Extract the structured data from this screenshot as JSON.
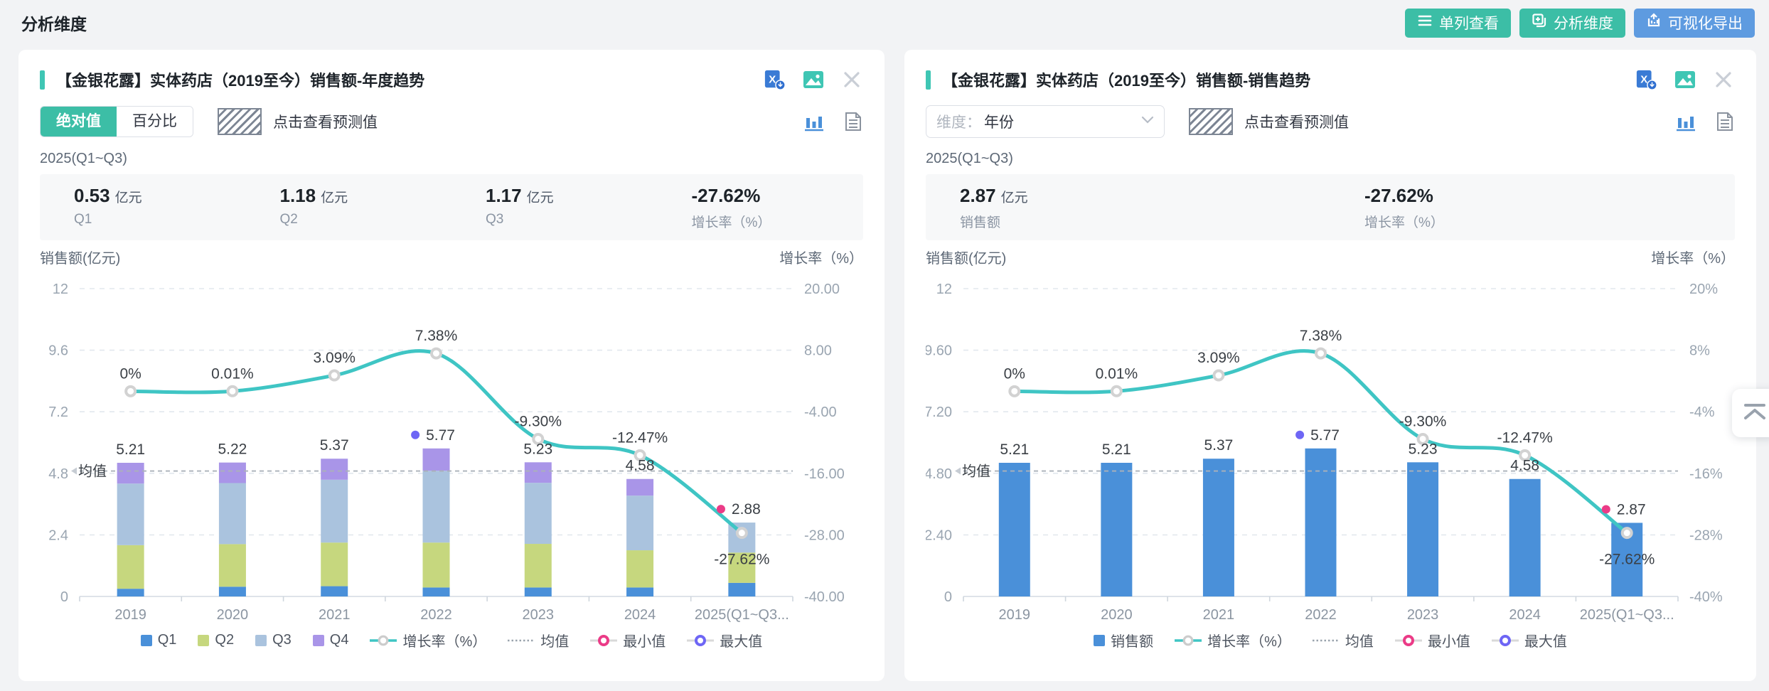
{
  "page": {
    "title": "分析维度"
  },
  "toolbar": {
    "single_column": "单列查看",
    "analysis_dimension": "分析维度",
    "visual_export": "可视化导出"
  },
  "colors": {
    "teal_button": "#3cbea6",
    "blue_button": "#5e9be0",
    "accent_bar": "#3fc6b4",
    "bar_blue": "#4a90d9",
    "q2_green": "#c6d77e",
    "q3_steel": "#aac3de",
    "q4_purple": "#a995e8",
    "line_teal": "#3fc5c4",
    "min_pink": "#eb3b87",
    "max_purple": "#6e66f5"
  },
  "panels": [
    {
      "title": "【金银花露】实体药店（2019至今）销售额-年度趋势",
      "toggle_active": "绝对值",
      "toggle_inactive": "百分比",
      "forecast_hint": "点击查看预测值",
      "period": "2025(Q1~Q3)",
      "stats": [
        {
          "value": "0.53",
          "unit": "亿元",
          "label": "Q1"
        },
        {
          "value": "1.18",
          "unit": "亿元",
          "label": "Q2"
        },
        {
          "value": "1.17",
          "unit": "亿元",
          "label": "Q3"
        },
        {
          "value": "-27.62%",
          "unit": "",
          "label": "增长率（%）"
        }
      ]
    },
    {
      "title": "【金银花露】实体药店（2019至今）销售额-销售趋势",
      "dimension_label": "维度：",
      "dimension_value": "年份",
      "forecast_hint": "点击查看预测值",
      "period": "2025(Q1~Q3)",
      "stats": [
        {
          "value": "2.87",
          "unit": "亿元",
          "label": "销售额"
        },
        {
          "value": "-27.62%",
          "unit": "",
          "label": "增长率（%）"
        }
      ]
    }
  ],
  "chart_data": [
    {
      "type": "bar",
      "subtype": "stacked-bar-with-line",
      "categories": [
        "2019",
        "2020",
        "2021",
        "2022",
        "2023",
        "2024",
        "2025(Q1~Q3..."
      ],
      "series": [
        {
          "name": "Q1",
          "color": "#4a90d9",
          "values": [
            0.3,
            0.38,
            0.4,
            0.35,
            0.35,
            0.35,
            0.53
          ]
        },
        {
          "name": "Q2",
          "color": "#c6d77e",
          "values": [
            1.7,
            1.66,
            1.7,
            1.75,
            1.7,
            1.45,
            1.18
          ]
        },
        {
          "name": "Q3",
          "color": "#aac3de",
          "values": [
            2.4,
            2.38,
            2.45,
            2.8,
            2.38,
            2.13,
            1.17
          ]
        },
        {
          "name": "Q4",
          "color": "#a995e8",
          "values": [
            0.81,
            0.8,
            0.82,
            0.87,
            0.8,
            0.65,
            0
          ]
        }
      ],
      "bar_totals": [
        5.21,
        5.22,
        5.37,
        5.77,
        5.23,
        4.58,
        2.88
      ],
      "bar_labels": [
        "5.21",
        "5.22",
        "5.37",
        "5.77",
        "5.23",
        "4.58",
        "2.88"
      ],
      "line": {
        "name": "增长率（%）",
        "color": "#3fc5c4",
        "values": [
          0,
          0.01,
          3.09,
          7.38,
          -9.3,
          -12.47,
          -27.62
        ],
        "labels": [
          "0%",
          "0.01%",
          "3.09%",
          "7.38%",
          "-9.30%",
          "-12.47%",
          "-27.62%"
        ]
      },
      "y1": {
        "title": "销售额(亿元)",
        "min": 0,
        "max": 12,
        "ticks": [
          {
            "v": 12,
            "l": "12"
          },
          {
            "v": 9.6,
            "l": "9.6"
          },
          {
            "v": 7.2,
            "l": "7.2"
          },
          {
            "v": 4.8,
            "l": "4.8"
          },
          {
            "v": 2.4,
            "l": "2.4"
          },
          {
            "v": 0,
            "l": "0"
          }
        ]
      },
      "y2": {
        "title": "增长率（%）",
        "min": -40,
        "max": 20,
        "ticks": [
          {
            "v": 20,
            "l": "20.00"
          },
          {
            "v": 8,
            "l": "8.00"
          },
          {
            "v": -4,
            "l": "-4.00"
          },
          {
            "v": -16,
            "l": "-16.00"
          },
          {
            "v": -28,
            "l": "-28.00"
          },
          {
            "v": -40,
            "l": "-40.00"
          }
        ]
      },
      "mean": {
        "value": 4.89,
        "label": "均值"
      },
      "max_marker": {
        "index": 3,
        "color": "#6e66f5"
      },
      "min_marker": {
        "index": 6,
        "color": "#eb3b87"
      },
      "legend": [
        {
          "label": "Q1",
          "type": "square",
          "color": "#4a90d9"
        },
        {
          "label": "Q2",
          "type": "square",
          "color": "#c6d77e"
        },
        {
          "label": "Q3",
          "type": "square",
          "color": "#aac3de"
        },
        {
          "label": "Q4",
          "type": "square",
          "color": "#a995e8"
        },
        {
          "label": "增长率（%）",
          "type": "linedot",
          "color": "#3fc5c4"
        },
        {
          "label": "均值",
          "type": "dotline",
          "color": "#9aa3ad"
        },
        {
          "label": "最小值",
          "type": "ring",
          "color": "#eb3b87"
        },
        {
          "label": "最大值",
          "type": "ring",
          "color": "#6e66f5"
        }
      ]
    },
    {
      "type": "bar",
      "subtype": "bar-with-line",
      "categories": [
        "2019",
        "2020",
        "2021",
        "2022",
        "2023",
        "2024",
        "2025(Q1~Q3..."
      ],
      "series": [
        {
          "name": "销售额",
          "color": "#4a90d9",
          "values": [
            5.21,
            5.21,
            5.37,
            5.77,
            5.23,
            4.58,
            2.87
          ]
        }
      ],
      "bar_totals": [
        5.21,
        5.21,
        5.37,
        5.77,
        5.23,
        4.58,
        2.87
      ],
      "bar_labels": [
        "5.21",
        "5.21",
        "5.37",
        "5.77",
        "5.23",
        "4.58",
        "2.87"
      ],
      "line": {
        "name": "增长率（%）",
        "color": "#3fc5c4",
        "values": [
          0,
          0.01,
          3.09,
          7.38,
          -9.3,
          -12.47,
          -27.62
        ],
        "labels": [
          "0%",
          "0.01%",
          "3.09%",
          "7.38%",
          "-9.30%",
          "-12.47%",
          "-27.62%"
        ]
      },
      "y1": {
        "title": "销售额(亿元)",
        "min": 0,
        "max": 12,
        "ticks": [
          {
            "v": 12,
            "l": "12"
          },
          {
            "v": 9.6,
            "l": "9.60"
          },
          {
            "v": 7.2,
            "l": "7.20"
          },
          {
            "v": 4.8,
            "l": "4.80"
          },
          {
            "v": 2.4,
            "l": "2.40"
          },
          {
            "v": 0,
            "l": "0"
          }
        ]
      },
      "y2": {
        "title": "增长率（%）",
        "min": -40,
        "max": 20,
        "ticks": [
          {
            "v": 20,
            "l": "20%"
          },
          {
            "v": 8,
            "l": "8%"
          },
          {
            "v": -4,
            "l": "-4%"
          },
          {
            "v": -16,
            "l": "-16%"
          },
          {
            "v": -28,
            "l": "-28%"
          },
          {
            "v": -40,
            "l": "-40%"
          }
        ]
      },
      "mean": {
        "value": 4.89,
        "label": "均值"
      },
      "max_marker": {
        "index": 3,
        "color": "#6e66f5"
      },
      "min_marker": {
        "index": 6,
        "color": "#eb3b87"
      },
      "legend": [
        {
          "label": "销售额",
          "type": "square",
          "color": "#4a90d9"
        },
        {
          "label": "增长率（%）",
          "type": "linedot",
          "color": "#3fc5c4"
        },
        {
          "label": "均值",
          "type": "dotline",
          "color": "#9aa3ad"
        },
        {
          "label": "最小值",
          "type": "ring",
          "color": "#eb3b87"
        },
        {
          "label": "最大值",
          "type": "ring",
          "color": "#6e66f5"
        }
      ]
    }
  ]
}
